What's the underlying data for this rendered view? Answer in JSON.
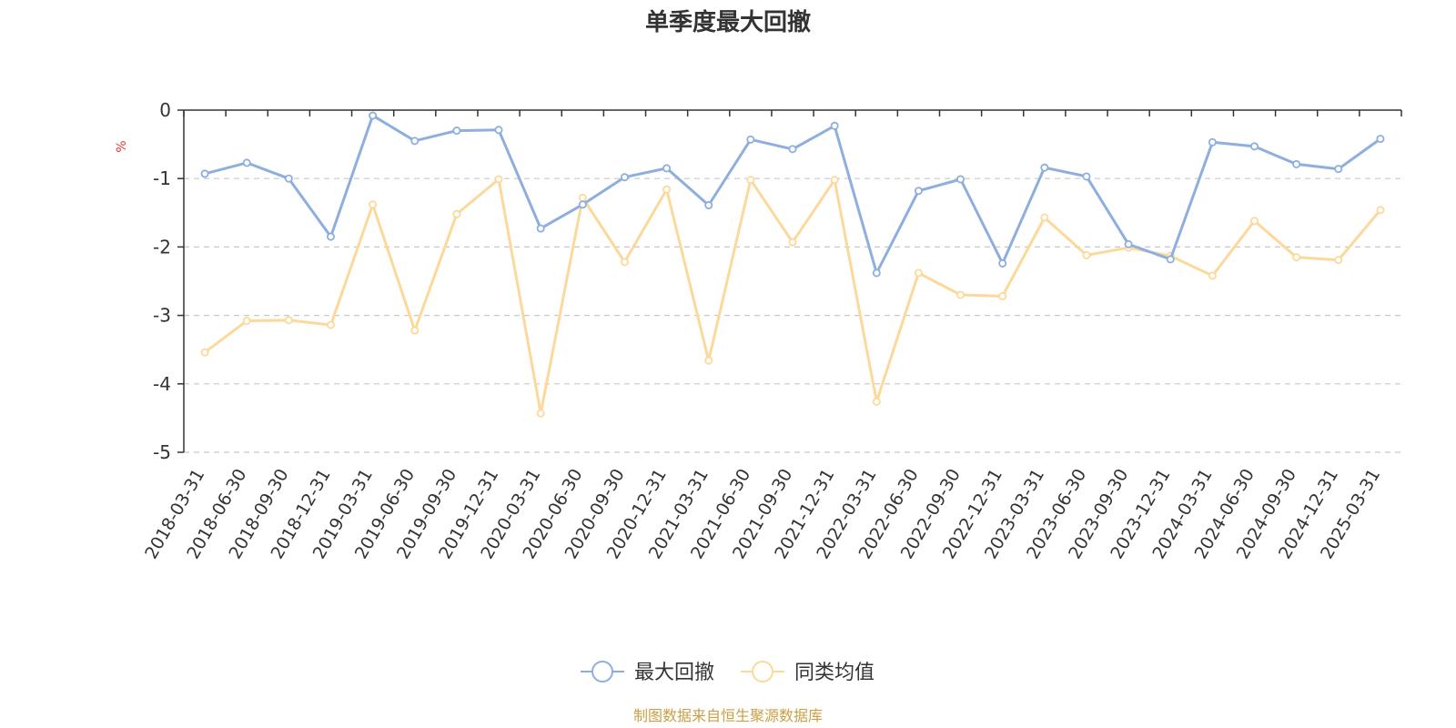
{
  "chart_data": {
    "type": "line",
    "title": "单季度最大回撤",
    "ylabel": "%",
    "ylim": [
      -5,
      0
    ],
    "yticks": [
      0,
      -1,
      -2,
      -3,
      -4,
      -5
    ],
    "grid": true,
    "legend_position": "bottom",
    "categories": [
      "2018-03-31",
      "2018-06-30",
      "2018-09-30",
      "2018-12-31",
      "2019-03-31",
      "2019-06-30",
      "2019-09-30",
      "2019-12-31",
      "2020-03-31",
      "2020-06-30",
      "2020-09-30",
      "2020-12-31",
      "2021-03-31",
      "2021-06-30",
      "2021-09-30",
      "2021-12-31",
      "2022-03-31",
      "2022-06-30",
      "2022-09-30",
      "2022-12-31",
      "2023-03-31",
      "2023-06-30",
      "2023-09-30",
      "2023-12-31",
      "2024-03-31",
      "2024-06-30",
      "2024-09-30",
      "2024-12-31",
      "2025-03-31"
    ],
    "series": [
      {
        "name": "最大回撤",
        "color": "#8eaee0",
        "values": [
          -0.93,
          -0.77,
          -1.0,
          -1.85,
          -0.08,
          -0.45,
          -0.3,
          -0.29,
          -1.73,
          -1.38,
          -0.98,
          -0.85,
          -1.39,
          -0.43,
          -0.57,
          -0.23,
          -2.38,
          -1.18,
          -1.01,
          -2.24,
          -0.84,
          -0.97,
          -1.96,
          -2.18,
          -0.47,
          -0.53,
          -0.79,
          -0.86,
          -0.42
        ]
      },
      {
        "name": "同类均值",
        "color": "#fcd99a",
        "values": [
          -3.54,
          -3.08,
          -3.07,
          -3.14,
          -1.38,
          -3.22,
          -1.52,
          -1.01,
          -4.43,
          -1.28,
          -2.22,
          -1.16,
          -3.66,
          -1.02,
          -1.93,
          -1.02,
          -4.26,
          -2.38,
          -2.7,
          -2.72,
          -1.57,
          -2.12,
          -2.01,
          -2.13,
          -2.42,
          -1.62,
          -2.15,
          -2.19,
          -1.46
        ]
      }
    ],
    "source_note": "制图数据来自恒生聚源数据库"
  }
}
